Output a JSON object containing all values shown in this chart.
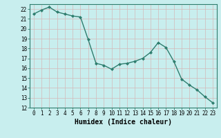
{
  "x": [
    0,
    1,
    2,
    3,
    4,
    5,
    6,
    7,
    8,
    9,
    10,
    11,
    12,
    13,
    14,
    15,
    16,
    17,
    18,
    19,
    20,
    21,
    22,
    23
  ],
  "y": [
    21.5,
    21.9,
    22.2,
    21.7,
    21.5,
    21.3,
    21.2,
    18.9,
    16.5,
    16.3,
    15.9,
    16.4,
    16.5,
    16.7,
    17.0,
    17.6,
    18.6,
    18.1,
    16.7,
    14.9,
    14.3,
    13.8,
    13.1,
    12.5
  ],
  "line_color": "#2e7d6e",
  "marker": "D",
  "marker_size": 2,
  "bg_color": "#c8eeee",
  "grid_color": "#b8d8d8",
  "xlabel": "Humidex (Indice chaleur)",
  "ylim": [
    12,
    22.5
  ],
  "xlim": [
    -0.5,
    23.5
  ],
  "yticks": [
    12,
    13,
    14,
    15,
    16,
    17,
    18,
    19,
    20,
    21,
    22
  ],
  "xticks": [
    0,
    1,
    2,
    3,
    4,
    5,
    6,
    7,
    8,
    9,
    10,
    11,
    12,
    13,
    14,
    15,
    16,
    17,
    18,
    19,
    20,
    21,
    22,
    23
  ],
  "tick_fontsize": 5.5,
  "xlabel_fontsize": 7,
  "line_width": 1.0
}
